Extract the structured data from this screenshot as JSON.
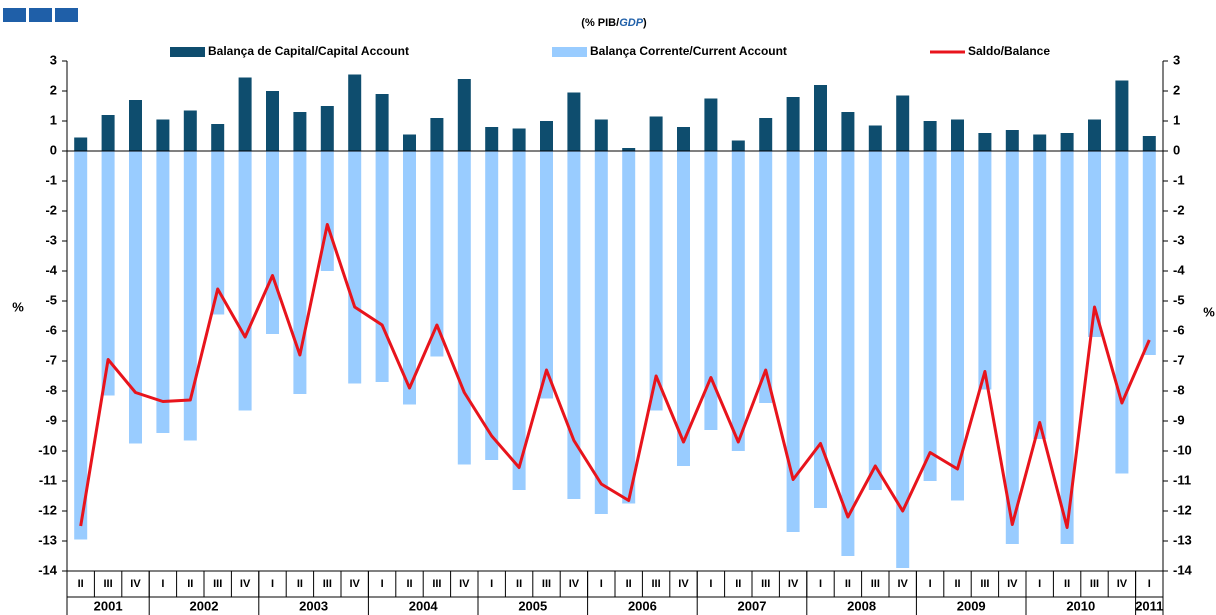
{
  "chart_data": {
    "type": "bar_line",
    "title": [
      "(% PIB/",
      "GDP",
      ")"
    ],
    "y_label": "%",
    "y2_label": "%",
    "categories": [
      "II",
      "III",
      "IV",
      "I",
      "II",
      "III",
      "IV",
      "I",
      "II",
      "III",
      "IV",
      "I",
      "II",
      "III",
      "IV",
      "I",
      "II",
      "III",
      "IV",
      "I",
      "II",
      "III",
      "IV",
      "I",
      "II",
      "III",
      "IV",
      "I",
      "II",
      "III",
      "IV",
      "I",
      "II",
      "III",
      "IV",
      "I",
      "II",
      "III",
      "IV",
      "I"
    ],
    "years": [
      "2001",
      "2002",
      "2003",
      "2004",
      "2005",
      "2006",
      "2007",
      "2008",
      "2009",
      "2010",
      "2011"
    ],
    "series": [
      {
        "name": "Balança de Capital/Capital Account",
        "type": "bar",
        "color": "#0e4d6e",
        "values": [
          0.45,
          1.2,
          1.7,
          1.05,
          1.35,
          0.9,
          2.45,
          2.0,
          1.3,
          1.5,
          2.55,
          1.9,
          0.55,
          1.1,
          2.4,
          0.8,
          0.75,
          1.0,
          1.95,
          1.05,
          0.1,
          1.15,
          0.8,
          1.75,
          0.35,
          1.1,
          1.8,
          2.2,
          1.3,
          0.85,
          1.85,
          1.0,
          1.05,
          0.6,
          0.7,
          0.55,
          0.6,
          1.05,
          2.35,
          0.5
        ]
      },
      {
        "name": "Balança Corrente/Current Account",
        "type": "bar",
        "color": "#99ccff",
        "values": [
          -12.95,
          -8.15,
          -9.75,
          -9.4,
          -9.65,
          -5.45,
          -8.65,
          -6.1,
          -8.1,
          -4.0,
          -7.75,
          -7.7,
          -8.45,
          -6.85,
          -10.45,
          -10.3,
          -11.3,
          -8.25,
          -11.6,
          -12.1,
          -11.75,
          -8.65,
          -10.5,
          -9.3,
          -10.0,
          -8.4,
          -12.7,
          -11.9,
          -13.5,
          -11.3,
          -13.9,
          -11.0,
          -11.65,
          -7.95,
          -13.1,
          -9.6,
          -13.1,
          -6.2,
          -10.75,
          -6.8
        ]
      },
      {
        "name": "Saldo/Balance",
        "type": "line",
        "color": "#e8141c",
        "values": [
          -12.5,
          -6.95,
          -8.05,
          -8.35,
          -8.3,
          -4.6,
          -6.2,
          -4.15,
          -6.8,
          -2.45,
          -5.2,
          -5.8,
          -7.9,
          -5.8,
          -8.05,
          -9.5,
          -10.55,
          -7.3,
          -9.65,
          -11.1,
          -11.65,
          -7.5,
          -9.7,
          -7.55,
          -9.7,
          -7.3,
          -10.95,
          -9.75,
          -12.2,
          -10.5,
          -12.0,
          -10.05,
          -10.6,
          -7.35,
          -12.45,
          -9.05,
          -12.55,
          -5.2,
          -8.4,
          -6.3
        ]
      }
    ],
    "ylim": [
      -14,
      3
    ],
    "yticks": [
      3,
      2,
      1,
      0,
      -1,
      -2,
      -3,
      -4,
      -5,
      -6,
      -7,
      -8,
      -9,
      -10,
      -11,
      -12,
      -13,
      -14
    ],
    "y2lim": [
      -14,
      3
    ],
    "y2ticks": [
      3,
      2,
      1,
      0,
      -1,
      -2,
      -3,
      -4,
      -5,
      -6,
      -7,
      -8,
      -9,
      -10,
      -11,
      -12,
      -13,
      -14
    ]
  }
}
